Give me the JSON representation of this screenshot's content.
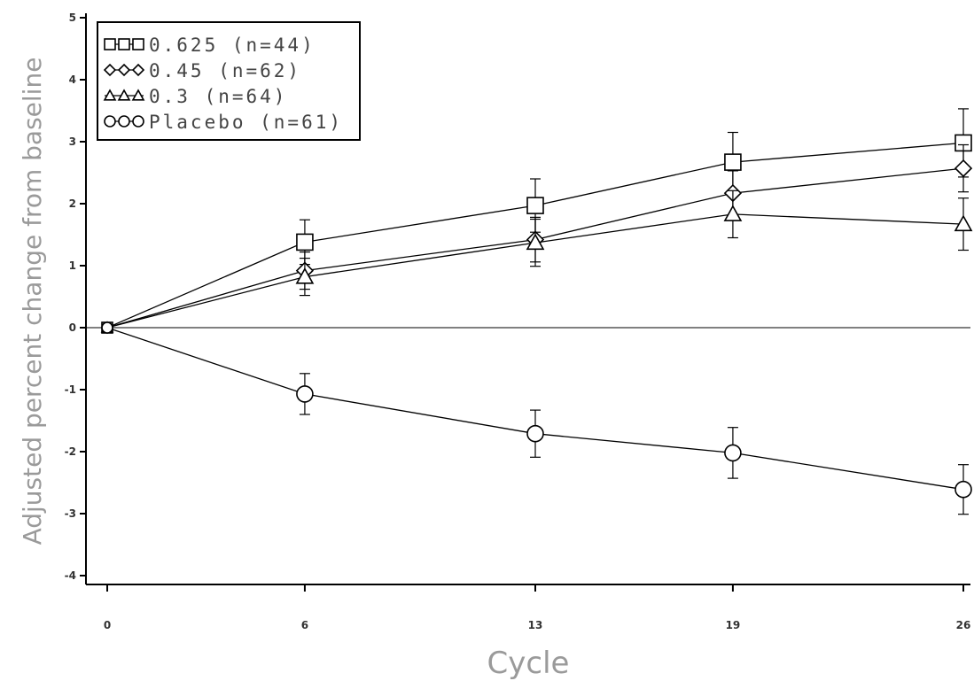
{
  "chart_data": {
    "type": "line",
    "xlabel": "Cycle",
    "ylabel": "Adjusted percent change from baseline",
    "x": [
      0,
      6,
      13,
      19,
      26
    ],
    "xtick_labels": [
      "0",
      "6",
      "13",
      "19",
      "26"
    ],
    "yticks": [
      5,
      4,
      3,
      2,
      1,
      0,
      -1,
      -2,
      -3,
      -4
    ],
    "ytick_labels": [
      "5",
      "4",
      "3",
      "2",
      "1",
      "0",
      "-1",
      "-2",
      "-3",
      "-4"
    ],
    "ylim": [
      -4.3,
      5.1
    ],
    "reference_line_y": 0,
    "legend_position": "top-left",
    "series": [
      {
        "name": "0.625 (n=44)",
        "marker": "square",
        "values": [
          0.0,
          1.38,
          1.97,
          2.67,
          2.98
        ],
        "err": [
          0.06,
          0.36,
          0.43,
          0.48,
          0.55
        ]
      },
      {
        "name": "0.45 (n=62)",
        "marker": "diamond",
        "values": [
          0.0,
          0.92,
          1.42,
          2.17,
          2.57
        ],
        "err": [
          0.05,
          0.3,
          0.36,
          0.36,
          0.38
        ]
      },
      {
        "name": "0.3 (n=64)",
        "marker": "triangle",
        "values": [
          0.0,
          0.82,
          1.37,
          1.83,
          1.67
        ],
        "err": [
          0.05,
          0.3,
          0.38,
          0.38,
          0.42
        ]
      },
      {
        "name": "Placebo (n=61)",
        "marker": "circle",
        "values": [
          0.0,
          -1.07,
          -1.71,
          -2.02,
          -2.61
        ],
        "err": [
          0.05,
          0.33,
          0.38,
          0.41,
          0.4
        ]
      }
    ]
  }
}
